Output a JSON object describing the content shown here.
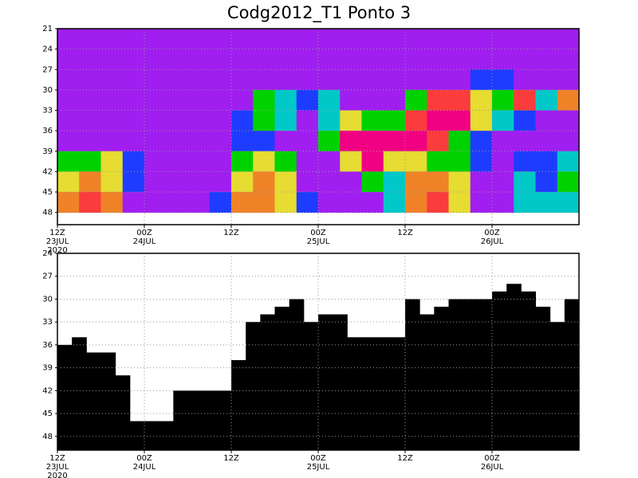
{
  "chart_data": [
    {
      "type": "heatmap",
      "title": "Codg2012_T1 Ponto 3",
      "categories": [
        [
          "12Z",
          "23JUL",
          "2020"
        ],
        null,
        null,
        null,
        [
          "00Z",
          "24JUL"
        ],
        null,
        null,
        null,
        [
          "12Z"
        ],
        null,
        null,
        null,
        [
          "00Z",
          "25JUL"
        ],
        null,
        null,
        null,
        [
          "12Z"
        ],
        null,
        null,
        null,
        [
          "00Z",
          "26JUL"
        ],
        null,
        null,
        null
      ],
      "y_edges": [
        21,
        24,
        27,
        30,
        33,
        36,
        39,
        42,
        45,
        48
      ],
      "colors": [
        "#a01ef0",
        "#1e3cff",
        "#00c8c8",
        "#00d200",
        "#e6dc32",
        "#f08228",
        "#fa3c3c",
        "#f00082"
      ],
      "values": [
        [
          0,
          0,
          0,
          0,
          0,
          0,
          0,
          0,
          0,
          0,
          0,
          0,
          0,
          0,
          0,
          0,
          0,
          0,
          0,
          0,
          0,
          0,
          0,
          0
        ],
        [
          0,
          0,
          0,
          0,
          0,
          0,
          0,
          0,
          0,
          0,
          0,
          0,
          0,
          0,
          0,
          0,
          0,
          0,
          0,
          0,
          0,
          0,
          0,
          0
        ],
        [
          0,
          0,
          0,
          0,
          0,
          0,
          0,
          0,
          0,
          0,
          0,
          0,
          0,
          0,
          0,
          0,
          0,
          0,
          0,
          1,
          1,
          0,
          0,
          0
        ],
        [
          0,
          0,
          0,
          0,
          0,
          0,
          0,
          0,
          0,
          3,
          2,
          1,
          2,
          0,
          0,
          0,
          3,
          6,
          6,
          4,
          3,
          6,
          2,
          5
        ],
        [
          0,
          0,
          0,
          0,
          0,
          0,
          0,
          0,
          1,
          3,
          2,
          0,
          2,
          4,
          3,
          3,
          6,
          7,
          7,
          4,
          2,
          1,
          0,
          0
        ],
        [
          0,
          0,
          0,
          0,
          0,
          0,
          0,
          0,
          1,
          1,
          0,
          0,
          3,
          7,
          7,
          7,
          7,
          6,
          3,
          1,
          0,
          0,
          0,
          0
        ],
        [
          3,
          3,
          4,
          1,
          0,
          0,
          0,
          0,
          3,
          4,
          3,
          0,
          0,
          4,
          7,
          4,
          4,
          3,
          3,
          1,
          0,
          1,
          1,
          2
        ],
        [
          4,
          5,
          4,
          1,
          0,
          0,
          0,
          0,
          4,
          5,
          4,
          0,
          0,
          0,
          3,
          2,
          5,
          5,
          4,
          0,
          0,
          2,
          1,
          3
        ],
        [
          5,
          6,
          5,
          0,
          0,
          0,
          0,
          1,
          5,
          5,
          4,
          1,
          0,
          0,
          0,
          2,
          5,
          6,
          4,
          0,
          0,
          2,
          2,
          2
        ]
      ],
      "ylim": [
        21,
        49.8
      ],
      "y_inverted": true,
      "yticks": [
        21,
        24,
        27,
        30,
        33,
        36,
        39,
        42,
        45,
        48
      ],
      "grid": true
    },
    {
      "type": "bar",
      "color": "#000000",
      "categories": [
        [
          "12Z",
          "23JUL",
          "2020"
        ],
        null,
        null,
        null,
        null,
        null,
        [
          "00Z",
          "24JUL"
        ],
        null,
        null,
        null,
        null,
        null,
        [
          "12Z"
        ],
        null,
        null,
        null,
        null,
        null,
        [
          "00Z",
          "25JUL"
        ],
        null,
        null,
        null,
        null,
        null,
        [
          "12Z"
        ],
        null,
        null,
        null,
        null,
        null,
        [
          "00Z",
          "26JUL"
        ],
        null,
        null,
        null,
        null,
        null
      ],
      "values": [
        36,
        35,
        37,
        37,
        40,
        46,
        46,
        46,
        42,
        42,
        42,
        42,
        38,
        33,
        32,
        31,
        30,
        33,
        32,
        32,
        35,
        35,
        35,
        35,
        30,
        32,
        31,
        30,
        30,
        30,
        29,
        28,
        29,
        31,
        33,
        30
      ],
      "ylim": [
        24,
        49.8
      ],
      "y_inverted": true,
      "yticks": [
        24,
        27,
        30,
        33,
        36,
        39,
        42,
        45,
        48
      ],
      "grid": true
    }
  ]
}
